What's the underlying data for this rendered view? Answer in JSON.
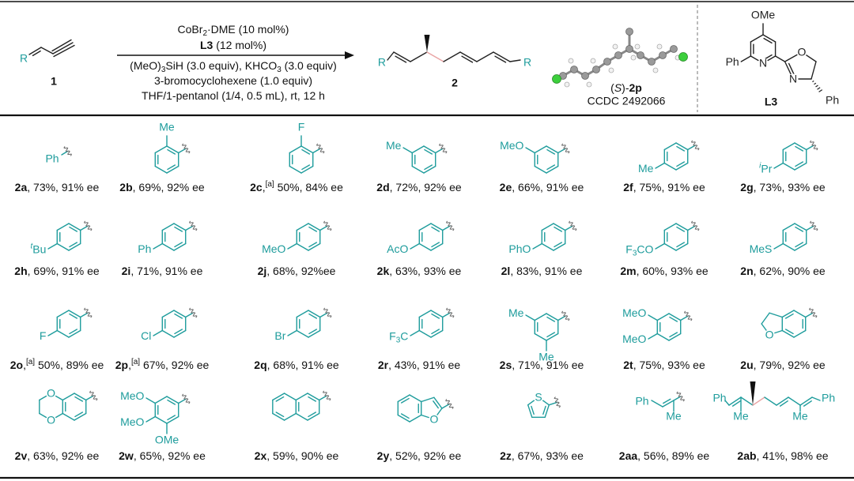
{
  "scheme": {
    "reactant": {
      "group": "R",
      "label": "1"
    },
    "conditions": [
      [
        "CoBr",
        "2",
        "·DME (10 mol%)"
      ],
      [
        "L3",
        " (12 mol%)"
      ],
      [
        "(MeO)",
        "3",
        "SiH (3.0 equiv), KHCO",
        "3",
        " (3.0 equiv)"
      ],
      [
        "3-bromocyclohexene (1.0 equiv)"
      ],
      [
        "THF/1-pentanol (1/4, 0.5 mL), rt, 12 h"
      ]
    ],
    "product": {
      "groups": [
        "R",
        "R"
      ],
      "label": "2"
    },
    "crystal": {
      "name": [
        "(",
        "S",
        ")-",
        "2p"
      ],
      "ccdc": "CCDC 2492066"
    },
    "ligand": {
      "groups": [
        "OMe",
        "Ph",
        "N",
        "O",
        "N",
        "Ph"
      ],
      "label": "L3"
    }
  },
  "entries": [
    {
      "groups": [
        "Ph"
      ],
      "label": [
        "2a",
        ", 73%, 91% ee"
      ]
    },
    {
      "groups": [
        "Me"
      ],
      "label": [
        "2b",
        ", 69%, 92% ee"
      ]
    },
    {
      "groups": [
        "F"
      ],
      "label": [
        "2c",
        ",",
        "[a]",
        " 50%, 84% ee"
      ]
    },
    {
      "groups": [
        "Me"
      ],
      "label": [
        "2d",
        ", 72%, 92% ee"
      ]
    },
    {
      "groups": [
        "MeO"
      ],
      "label": [
        "2e",
        ", 66%, 91% ee"
      ]
    },
    {
      "groups": [
        "Me"
      ],
      "label": [
        "2f",
        ", 75%, 91% ee"
      ]
    },
    {
      "groups": [
        [
          "i",
          "Pr"
        ]
      ],
      "label": [
        "2g",
        ", 73%, 93% ee"
      ]
    },
    {
      "groups": [
        [
          "t",
          "Bu"
        ]
      ],
      "label": [
        "2h",
        ", 69%, 91% ee"
      ]
    },
    {
      "groups": [
        "Ph"
      ],
      "label": [
        "2i",
        ", 71%, 91% ee"
      ]
    },
    {
      "groups": [
        "MeO"
      ],
      "label": [
        "2j",
        ", 68%, 92%ee"
      ]
    },
    {
      "groups": [
        "AcO"
      ],
      "label": [
        "2k",
        ", 63%, 93% ee"
      ]
    },
    {
      "groups": [
        "PhO"
      ],
      "label": [
        "2l",
        ", 83%, 91% ee"
      ]
    },
    {
      "groups": [
        [
          "F",
          "3",
          "CO"
        ]
      ],
      "label": [
        "2m",
        ", 60%, 93% ee"
      ]
    },
    {
      "groups": [
        "MeS"
      ],
      "label": [
        "2n",
        ", 62%, 90% ee"
      ]
    },
    {
      "groups": [
        "F"
      ],
      "label": [
        "2o",
        ",",
        "[a]",
        " 50%, 89% ee"
      ]
    },
    {
      "groups": [
        "Cl"
      ],
      "label": [
        "2p",
        ",",
        "[a]",
        " 67%, 92% ee"
      ]
    },
    {
      "groups": [
        "Br"
      ],
      "label": [
        "2q",
        ", 68%, 91% ee"
      ]
    },
    {
      "groups": [
        [
          "F",
          "3",
          "C"
        ]
      ],
      "label": [
        "2r",
        ", 43%, 91% ee"
      ]
    },
    {
      "groups": [
        "Me",
        "Me"
      ],
      "label": [
        "2s",
        ", 71%, 91% ee"
      ]
    },
    {
      "groups": [
        "MeO",
        "MeO"
      ],
      "label": [
        "2t",
        ", 75%, 93% ee"
      ]
    },
    {
      "groups": [
        "O"
      ],
      "label": [
        "2u",
        ", 79%, 92% ee"
      ]
    },
    {
      "groups": [
        "O",
        "O"
      ],
      "label": [
        "2v",
        ", 63%, 92% ee"
      ]
    },
    {
      "groups": [
        "MeO",
        "MeO",
        "OMe"
      ],
      "label": [
        "2w",
        ", 65%, 92% ee"
      ]
    },
    {
      "label": [
        "2x",
        ", 59%, 90% ee"
      ]
    },
    {
      "groups": [
        "O"
      ],
      "label": [
        "2y",
        ", 52%, 92% ee"
      ]
    },
    {
      "groups": [
        "S"
      ],
      "label": [
        "2z",
        ", 67%, 93% ee"
      ]
    },
    {
      "groups": [
        "Ph",
        "Me"
      ],
      "label": [
        "2aa",
        ", 56%, 89% ee"
      ]
    },
    {
      "groups": [
        "Ph",
        "Me",
        "Me",
        "Ph"
      ],
      "label": [
        "2ab",
        ", 41%, 98% ee"
      ]
    }
  ]
}
